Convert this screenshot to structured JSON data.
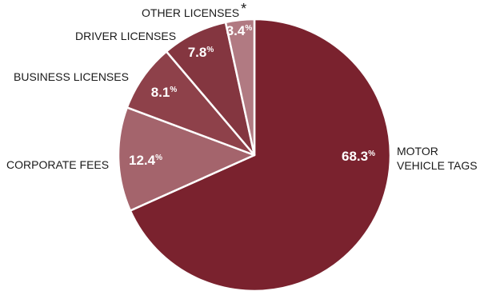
{
  "chart_data": {
    "type": "pie",
    "title": "",
    "start": "top",
    "direction": "clockwise",
    "unit": "%",
    "slices": [
      {
        "category": "MOTOR VEHICLE TAGS",
        "value": 68.3,
        "label": "68.3",
        "color": "#7a222e",
        "category_lines": [
          "MOTOR",
          "VEHICLE TAGS"
        ]
      },
      {
        "category": "CORPORATE FEES",
        "value": 12.4,
        "label": "12.4",
        "color": "#a4646c",
        "category_lines": [
          "CORPORATE FEES"
        ]
      },
      {
        "category": "BUSINESS LICENSES",
        "value": 8.1,
        "label": "8.1",
        "color": "#8e414a",
        "category_lines": [
          "BUSINESS LICENSES"
        ]
      },
      {
        "category": "DRIVER LICENSES",
        "value": 7.8,
        "label": "7.8",
        "color": "#843640",
        "category_lines": [
          "DRIVER LICENSES"
        ]
      },
      {
        "category": "OTHER LICENSES",
        "value": 3.4,
        "label": "3.4",
        "color": "#b17a82",
        "category_lines": [
          "OTHER LICENSES"
        ],
        "footnote_mark": "*"
      }
    ]
  }
}
